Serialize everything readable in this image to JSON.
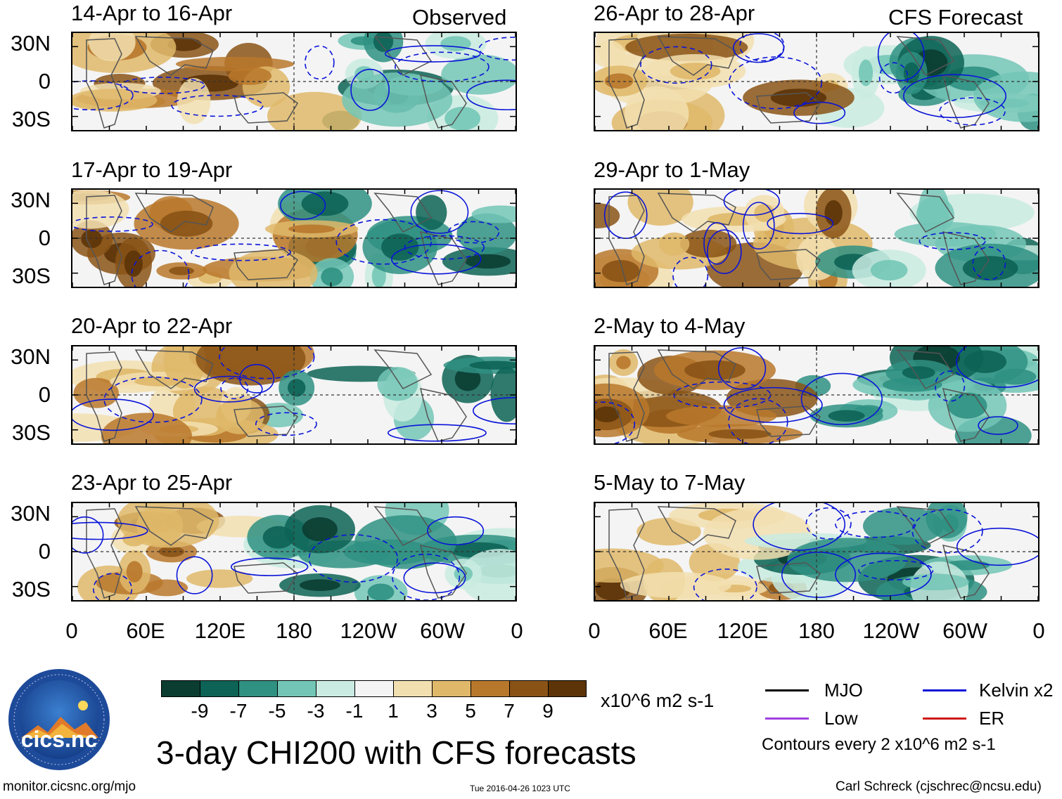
{
  "chart_data": {
    "type": "heatmap",
    "title": "3-day CHI200 with CFS forecasts",
    "left_header": "Observed",
    "right_header": "CFS Forecast",
    "panels": [
      {
        "column": "observed",
        "period": "14-Apr to 16-Apr"
      },
      {
        "column": "observed",
        "period": "17-Apr to 19-Apr"
      },
      {
        "column": "observed",
        "period": "20-Apr to 22-Apr"
      },
      {
        "column": "observed",
        "period": "23-Apr to 25-Apr"
      },
      {
        "column": "forecast",
        "period": "26-Apr to 28-Apr"
      },
      {
        "column": "forecast",
        "period": "29-Apr to 1-May"
      },
      {
        "column": "forecast",
        "period": "2-May to 4-May"
      },
      {
        "column": "forecast",
        "period": "5-May to 7-May"
      }
    ],
    "y_ticks": [
      "30N",
      "0",
      "30S"
    ],
    "x_ticks": [
      "0",
      "60E",
      "120E",
      "180",
      "120W",
      "60W",
      "0"
    ],
    "colorbar": {
      "labels": [
        "-9",
        "-7",
        "-5",
        "-3",
        "-1",
        "1",
        "3",
        "5",
        "7",
        "9"
      ],
      "colors": [
        "#0b3d31",
        "#0d6355",
        "#2f9182",
        "#73c6b6",
        "#c9ebe1",
        "#f4f4f4",
        "#f2dfb0",
        "#dfb86a",
        "#b8782c",
        "#8a5316",
        "#5c3408"
      ],
      "units": "x10^6 m2 s-1"
    },
    "legend": {
      "items": [
        {
          "label": "MJO",
          "color": "#000000"
        },
        {
          "label": "Kelvin x2",
          "color": "#0a14d8"
        },
        {
          "label": "Low",
          "color": "#a040e0"
        },
        {
          "label": "ER",
          "color": "#d01818"
        }
      ],
      "note": "Contours every 2 x10^6 m2 s-1"
    }
  },
  "footer": {
    "left": "monitor.cicsnc.org/mjo",
    "center": "Tue 2016-04-26 1023 UTC",
    "right": "Carl Schreck (cjschrec@ncsu.edu)"
  },
  "logo": {
    "text": "cics.nc",
    "ring_text": "Cooperative Institute for Climate and Satellites"
  }
}
